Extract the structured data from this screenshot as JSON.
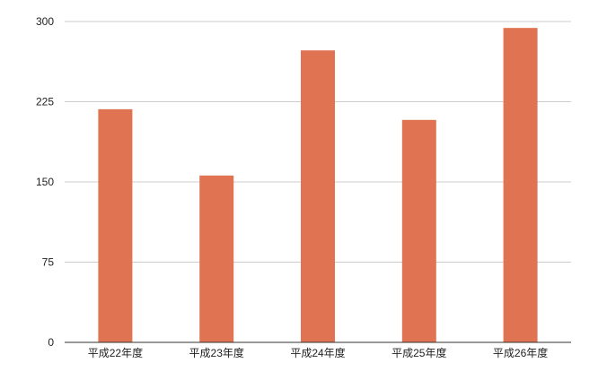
{
  "chart_data": {
    "type": "bar",
    "title": "",
    "xlabel": "",
    "ylabel": "",
    "categories": [
      "平成22年度",
      "平成23年度",
      "平成24年度",
      "平成25年度",
      "平成26年度"
    ],
    "values": [
      218,
      156,
      273,
      208,
      294
    ],
    "ylim": [
      0,
      300
    ],
    "yticks": [
      "0",
      "75",
      "150",
      "225",
      "300"
    ],
    "grid": true,
    "legend": "none",
    "bar_color": "#e07452",
    "grid_color": "#cccccc",
    "axis_color": "#333333"
  }
}
